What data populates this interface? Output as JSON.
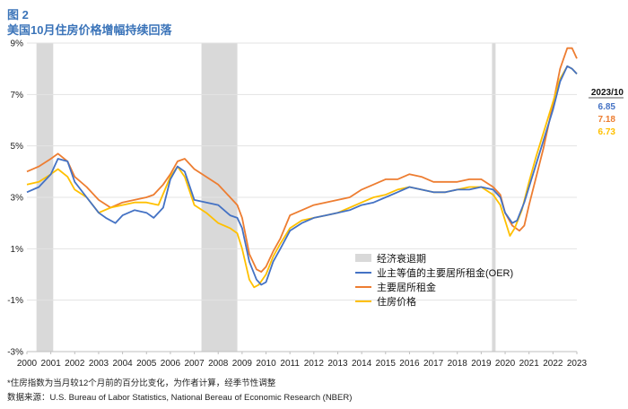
{
  "figure": {
    "label": "图 2",
    "title": "美国10月住房价格增幅持续回落",
    "footnote": "*住房指数为当月较12个月前的百分比变化，为作者计算，经季节性调整",
    "source": "数据来源：U.S. Bureau of Labor Statistics, National Bereau of Economic Research (NBER)"
  },
  "chart_data": {
    "type": "line",
    "title": "美国10月住房价格增幅持续回落",
    "xlabel": "",
    "ylabel": "",
    "xlim": [
      2000,
      2023
    ],
    "ylim": [
      -3,
      9
    ],
    "x_ticks": [
      "2000",
      "2001",
      "2002",
      "2003",
      "2004",
      "2005",
      "2006",
      "2007",
      "2008",
      "2009",
      "2010",
      "2011",
      "2012",
      "2013",
      "2014",
      "2015",
      "2016",
      "2017",
      "2018",
      "2019",
      "2020",
      "2021",
      "2022",
      "2023"
    ],
    "y_ticks": [
      "9%",
      "7%",
      "5%",
      "3%",
      "1%",
      "-1%",
      "-3%"
    ],
    "y_tick_values": [
      9,
      7,
      5,
      3,
      1,
      -1,
      -3
    ],
    "grid": "horizontal",
    "legend_position": "lower-right",
    "recessions": {
      "name": "经济衰退期",
      "color": "#d9d9d9",
      "periods": [
        [
          2000.4,
          2001.1
        ],
        [
          2007.3,
          2008.8
        ],
        [
          2019.45,
          2019.6
        ]
      ]
    },
    "latest": {
      "header": "2023/10",
      "values": [
        "6.85",
        "7.18",
        "6.73"
      ]
    },
    "series": [
      {
        "name": "业主等值的主要居所租金(OER)",
        "color": "#4472c4",
        "x": [
          2000.0,
          2000.5,
          2001.0,
          2001.3,
          2001.7,
          2002.0,
          2002.5,
          2003.0,
          2003.3,
          2003.7,
          2004.0,
          2004.5,
          2005.0,
          2005.3,
          2005.7,
          2006.0,
          2006.3,
          2006.6,
          2007.0,
          2007.5,
          2008.0,
          2008.5,
          2008.8,
          2009.0,
          2009.3,
          2009.6,
          2009.8,
          2010.0,
          2010.3,
          2010.6,
          2011.0,
          2011.5,
          2012.0,
          2012.5,
          2013.0,
          2013.5,
          2014.0,
          2014.5,
          2015.0,
          2015.5,
          2016.0,
          2016.5,
          2017.0,
          2017.5,
          2018.0,
          2018.5,
          2019.0,
          2019.5,
          2019.8,
          2020.0,
          2020.3,
          2020.5,
          2020.8,
          2021.0,
          2021.3,
          2021.6,
          2022.0,
          2022.3,
          2022.6,
          2022.8,
          2023.0
        ],
        "y": [
          3.2,
          3.4,
          3.9,
          4.5,
          4.4,
          3.6,
          3.0,
          2.4,
          2.2,
          2.0,
          2.3,
          2.5,
          2.4,
          2.2,
          2.6,
          3.7,
          4.2,
          4.0,
          2.9,
          2.8,
          2.7,
          2.3,
          2.2,
          1.8,
          0.5,
          -0.2,
          -0.4,
          -0.3,
          0.5,
          1.0,
          1.7,
          2.0,
          2.2,
          2.3,
          2.4,
          2.5,
          2.7,
          2.8,
          3.0,
          3.2,
          3.4,
          3.3,
          3.2,
          3.2,
          3.3,
          3.3,
          3.4,
          3.3,
          3.0,
          2.4,
          2.0,
          2.1,
          2.8,
          3.4,
          4.3,
          5.2,
          6.4,
          7.5,
          8.1,
          8.0,
          7.8
        ]
      },
      {
        "name": "主要居所租金",
        "color": "#ed7d31",
        "x": [
          2000.0,
          2000.5,
          2001.0,
          2001.3,
          2001.7,
          2002.0,
          2002.5,
          2003.0,
          2003.5,
          2004.0,
          2004.5,
          2005.0,
          2005.3,
          2005.7,
          2006.0,
          2006.3,
          2006.6,
          2007.0,
          2007.5,
          2008.0,
          2008.5,
          2008.8,
          2009.0,
          2009.3,
          2009.6,
          2009.8,
          2010.0,
          2010.3,
          2010.6,
          2011.0,
          2011.5,
          2012.0,
          2012.5,
          2013.0,
          2013.5,
          2014.0,
          2014.5,
          2015.0,
          2015.5,
          2016.0,
          2016.5,
          2017.0,
          2017.5,
          2018.0,
          2018.5,
          2019.0,
          2019.5,
          2019.8,
          2020.0,
          2020.3,
          2020.6,
          2020.8,
          2021.0,
          2021.3,
          2021.6,
          2022.0,
          2022.3,
          2022.6,
          2022.8,
          2023.0
        ],
        "y": [
          4.0,
          4.2,
          4.5,
          4.7,
          4.4,
          3.8,
          3.4,
          2.9,
          2.6,
          2.8,
          2.9,
          3.0,
          3.1,
          3.5,
          3.9,
          4.4,
          4.5,
          4.1,
          3.8,
          3.5,
          3.0,
          2.7,
          2.2,
          0.8,
          0.2,
          0.1,
          0.3,
          0.9,
          1.4,
          2.3,
          2.5,
          2.7,
          2.8,
          2.9,
          3.0,
          3.3,
          3.5,
          3.7,
          3.7,
          3.9,
          3.8,
          3.6,
          3.6,
          3.6,
          3.7,
          3.7,
          3.4,
          3.1,
          2.4,
          1.9,
          1.7,
          1.9,
          2.7,
          3.8,
          4.9,
          6.6,
          8.0,
          8.8,
          8.8,
          8.4
        ]
      },
      {
        "name": "住房价格",
        "color": "#ffc000",
        "x": [
          2000.0,
          2000.5,
          2001.0,
          2001.3,
          2001.7,
          2002.0,
          2002.5,
          2003.0,
          2003.5,
          2004.0,
          2004.5,
          2005.0,
          2005.5,
          2006.0,
          2006.3,
          2006.6,
          2007.0,
          2007.5,
          2008.0,
          2008.5,
          2008.8,
          2009.0,
          2009.3,
          2009.5,
          2009.7,
          2010.0,
          2010.3,
          2010.6,
          2011.0,
          2011.5,
          2012.0,
          2012.5,
          2013.0,
          2013.5,
          2014.0,
          2014.5,
          2015.0,
          2015.5,
          2016.0,
          2016.5,
          2017.0,
          2017.5,
          2018.0,
          2018.5,
          2019.0,
          2019.5,
          2019.8,
          2020.0,
          2020.2,
          2020.4,
          2020.7,
          2021.0,
          2021.3,
          2021.6,
          2022.0,
          2022.3,
          2022.6,
          2022.8,
          2023.0
        ],
        "y": [
          3.5,
          3.6,
          3.9,
          4.1,
          3.8,
          3.3,
          3.0,
          2.4,
          2.6,
          2.7,
          2.8,
          2.8,
          2.7,
          3.8,
          4.2,
          3.8,
          2.7,
          2.4,
          2.0,
          1.8,
          1.6,
          1.0,
          -0.2,
          -0.5,
          -0.4,
          0.0,
          0.7,
          1.2,
          1.8,
          2.1,
          2.2,
          2.3,
          2.4,
          2.6,
          2.8,
          3.0,
          3.1,
          3.3,
          3.4,
          3.3,
          3.2,
          3.2,
          3.3,
          3.4,
          3.4,
          3.1,
          2.7,
          2.1,
          1.5,
          1.8,
          2.5,
          3.6,
          4.6,
          5.5,
          6.7,
          7.6,
          8.1,
          8.0,
          7.8
        ]
      }
    ]
  }
}
